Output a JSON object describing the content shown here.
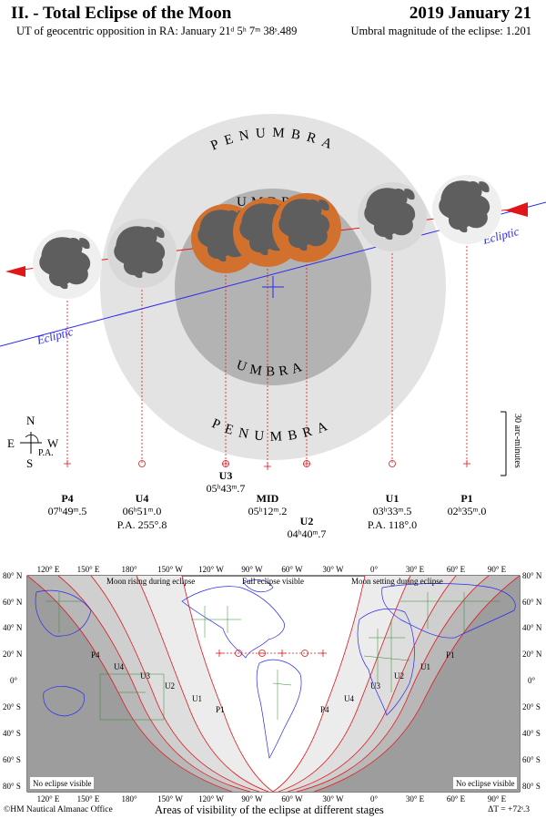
{
  "header": {
    "title": "II. - Total Eclipse of the Moon",
    "date": "2019 January 21",
    "opposition": "UT of geocentric opposition in RA: January 21ᵈ 5ʰ 7ᵐ 38ˢ.489",
    "magnitude": "Umbral magnitude of the eclipse: 1.201"
  },
  "diagram": {
    "penumbra_top": "PENUMBRA",
    "penumbra_bottom": "PENUMBRA",
    "umbra_top": "UMBRA",
    "umbra_bottom": "UMBRA",
    "ecliptic_left": "Ecliptic",
    "ecliptic_right": "Ecliptic",
    "scale_label": "30 arc-minutes",
    "compass": {
      "n": "N",
      "s": "S",
      "e": "E",
      "w": "W",
      "pa": "P.A."
    },
    "colors": {
      "penumbra": "#e3e3e3",
      "umbra": "#b3b3b3",
      "eclipsed_moon": "#d2712e",
      "moon_disk": "#efefef",
      "maria": "#5e5e5e",
      "path": "#e0161b",
      "ecliptic": "#2a2af0"
    },
    "contacts": [
      {
        "id": "P4",
        "time": "07ʰ49ᵐ.5",
        "pa": ""
      },
      {
        "id": "U4",
        "time": "06ʰ51ᵐ.0",
        "pa": "P.A. 255°.8"
      },
      {
        "id": "U3",
        "time": "05ʰ43ᵐ.7",
        "pa": ""
      },
      {
        "id": "MID",
        "time": "05ʰ12ᵐ.2",
        "pa": ""
      },
      {
        "id": "U2",
        "time": "04ʰ40ᵐ.7",
        "pa": ""
      },
      {
        "id": "U1",
        "time": "03ʰ33ᵐ.5",
        "pa": "P.A. 118°.0"
      },
      {
        "id": "P1",
        "time": "02ʰ35ᵐ.0",
        "pa": ""
      }
    ]
  },
  "map": {
    "lon_labels": [
      "120° E",
      "150° E",
      "180°",
      "150° W",
      "120° W",
      "90° W",
      "60° W",
      "30° W",
      "0°",
      "30° E",
      "60° E",
      "90° E"
    ],
    "lat_labels": [
      "80° N",
      "60° N",
      "40° N",
      "20° N",
      "0°",
      "20° S",
      "40° S",
      "60° S",
      "80° S"
    ],
    "notes": {
      "rising": "Moon rising during eclipse",
      "full": "Full eclipse visible",
      "setting": "Moon setting during eclipse",
      "no_left": "No eclipse visible",
      "no_right": "No eclipse visible"
    },
    "curve_labels_left": [
      "P4",
      "U4",
      "U3",
      "U2",
      "U1",
      "P1"
    ],
    "curve_labels_right": [
      "P4",
      "U4",
      "U3",
      "U2",
      "U1",
      "P1"
    ]
  },
  "footer": {
    "credit": "©HM Nautical Almanac Office",
    "caption": "Areas of visibility of the eclipse at different stages",
    "delta_t": "ΔT = +72ˢ.3"
  }
}
